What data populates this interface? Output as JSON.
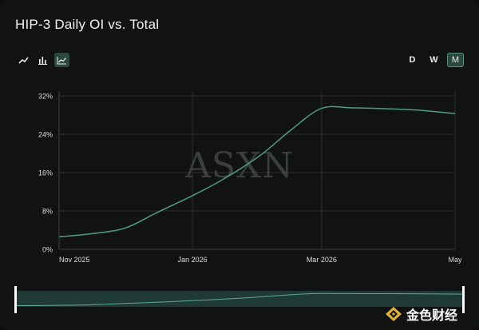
{
  "title": "HIP-3 Daily OI vs. Total",
  "chart_types": [
    {
      "name": "line",
      "icon": "trend-line-icon",
      "active": false
    },
    {
      "name": "bar",
      "icon": "bar-chart-icon",
      "active": false
    },
    {
      "name": "area",
      "icon": "area-chart-icon",
      "active": true
    }
  ],
  "ranges": [
    {
      "label": "D",
      "active": false
    },
    {
      "label": "W",
      "active": false
    },
    {
      "label": "M",
      "active": true
    }
  ],
  "watermark": "ASXN",
  "brand": {
    "text": "金色财经",
    "icon": "jinse-logo-icon"
  },
  "colors": {
    "line": "#4f9b86",
    "accent": "#2c4740"
  },
  "chart_data": {
    "type": "line",
    "title": "HIP-3 Daily OI vs. Total",
    "x_tick_labels": [
      "Nov 2025",
      "Jan 2026",
      "Mar 2026",
      "May"
    ],
    "y_tick_labels": [
      "0%",
      "8%",
      "16%",
      "24%",
      "32%"
    ],
    "ylim": [
      0,
      32
    ],
    "grid": true,
    "series": [
      {
        "x": [
          "2025-11-01",
          "2025-11-15",
          "2025-12-01",
          "2025-12-15",
          "2026-01-01",
          "2026-01-15",
          "2026-02-01",
          "2026-02-15",
          "2026-03-01",
          "2026-03-15",
          "2026-04-01",
          "2026-04-15",
          "2026-05-01"
        ],
        "values": [
          2.6,
          3.2,
          4.4,
          7.5,
          11.2,
          14.6,
          19.6,
          24.9,
          29.4,
          29.5,
          29.3,
          29.0,
          28.3
        ]
      }
    ]
  }
}
